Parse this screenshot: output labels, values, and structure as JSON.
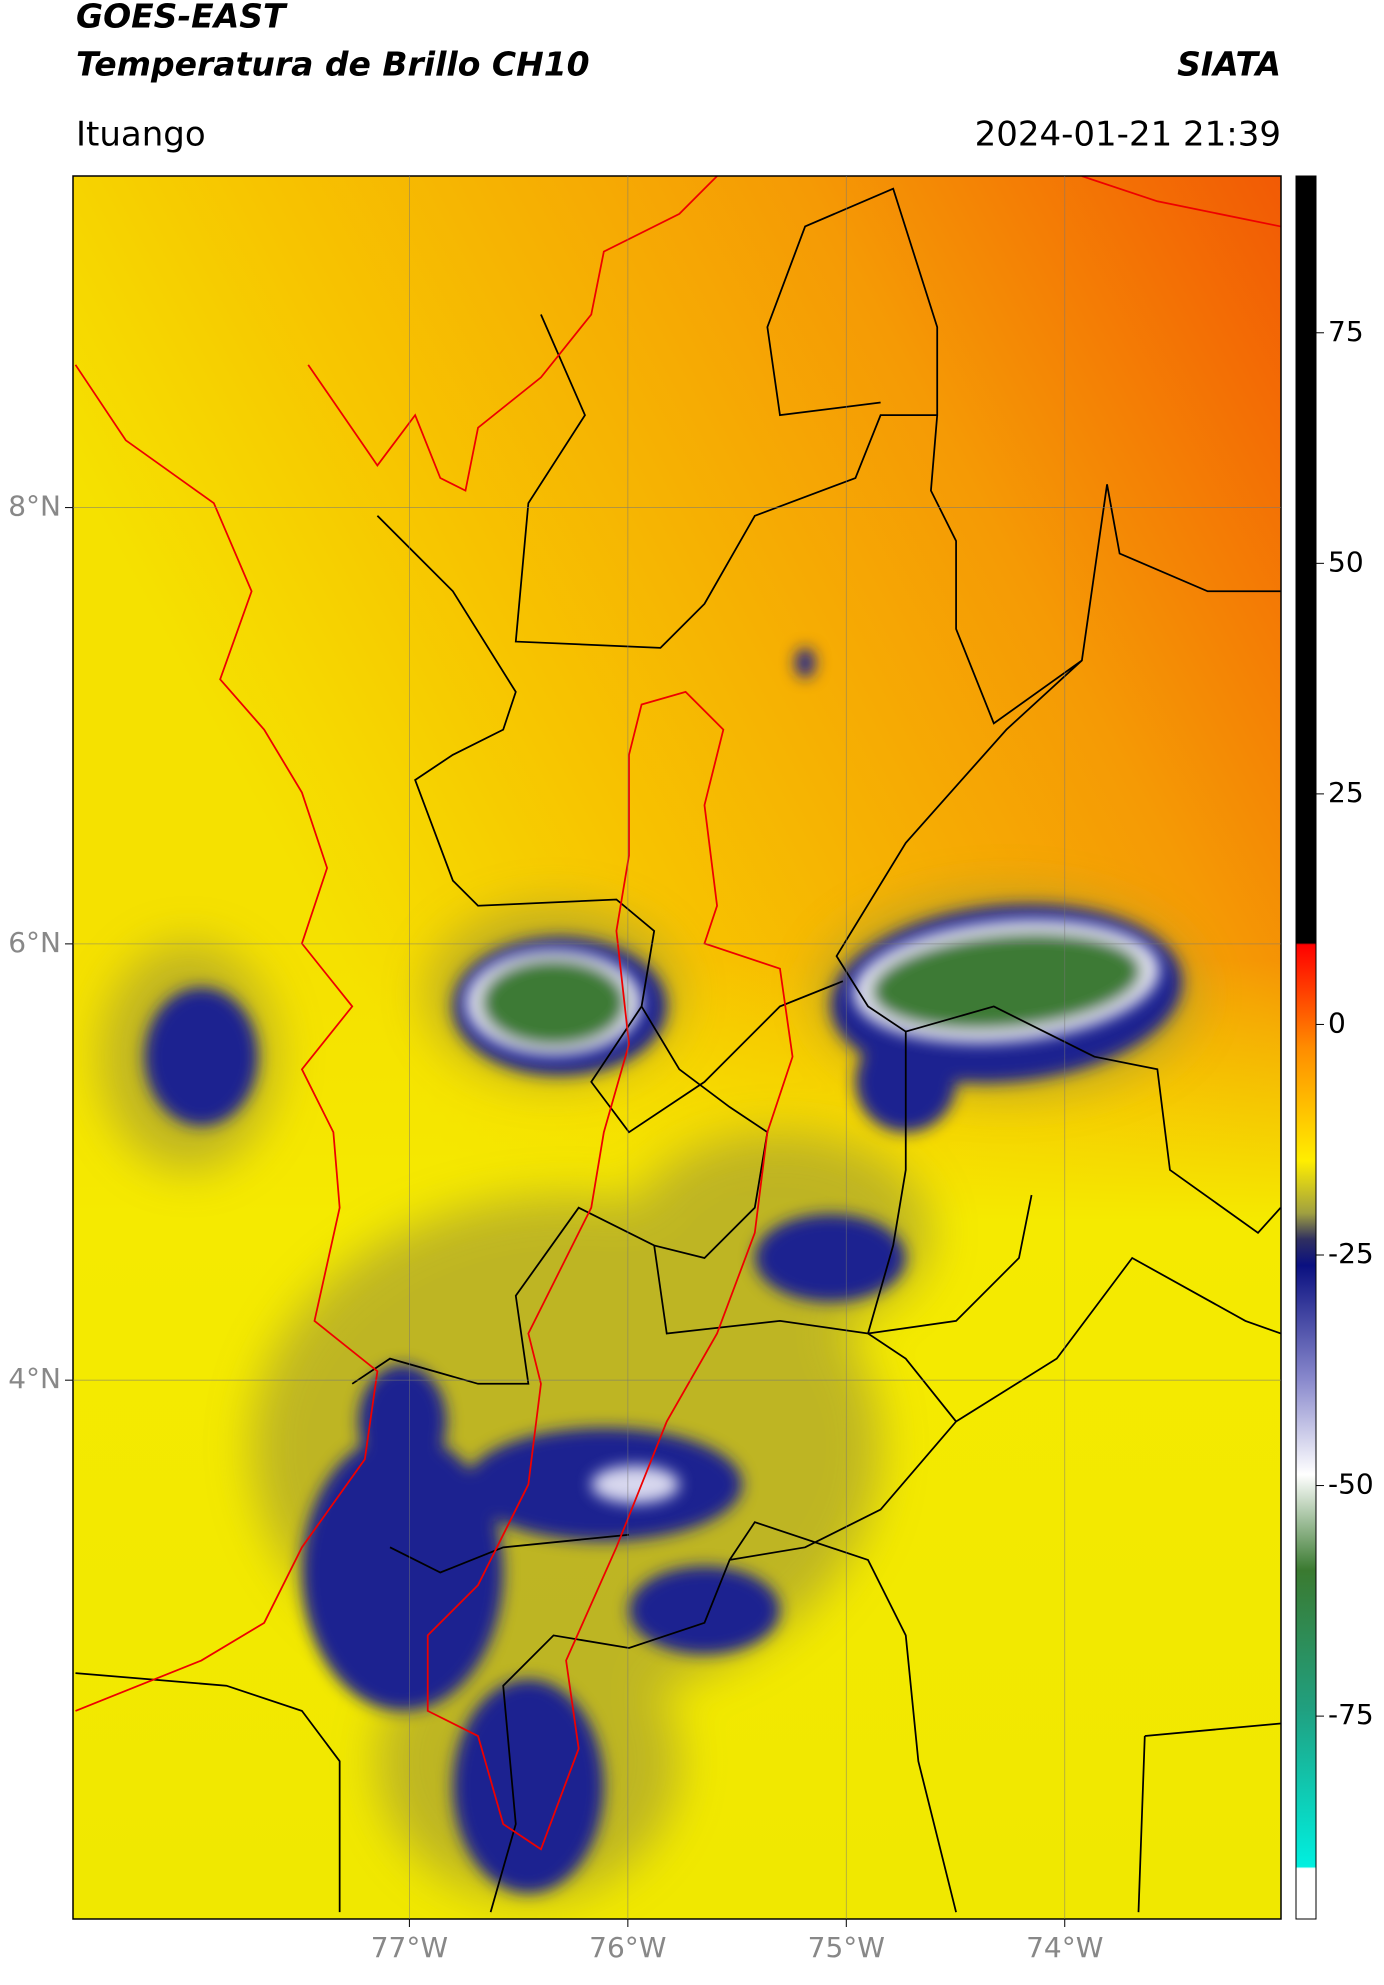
{
  "header": {
    "title_line1": "GOES-EAST",
    "title_line2": "Temperatura de Brillo CH10",
    "org": "SIATA",
    "location": "Ituango",
    "timestamp": "2024-01-21 21:39"
  },
  "map": {
    "lat_lim": [
      1.53,
      9.52
    ],
    "lon_lim": [
      -78.54,
      -73.01
    ],
    "lat_ticks": [
      {
        "value": 8,
        "label": "8°N"
      },
      {
        "value": 6,
        "label": "6°N"
      },
      {
        "value": 4,
        "label": "4°N"
      }
    ],
    "lon_ticks": [
      {
        "value": -77,
        "label": "77°W"
      },
      {
        "value": -76,
        "label": "76°W"
      },
      {
        "value": -75,
        "label": "75°W"
      },
      {
        "value": -74,
        "label": "74°W"
      }
    ]
  },
  "colorbar": {
    "lim": [
      -97,
      92
    ],
    "ticks": [
      75,
      50,
      25,
      0,
      -25,
      -50,
      -75
    ]
  }
}
